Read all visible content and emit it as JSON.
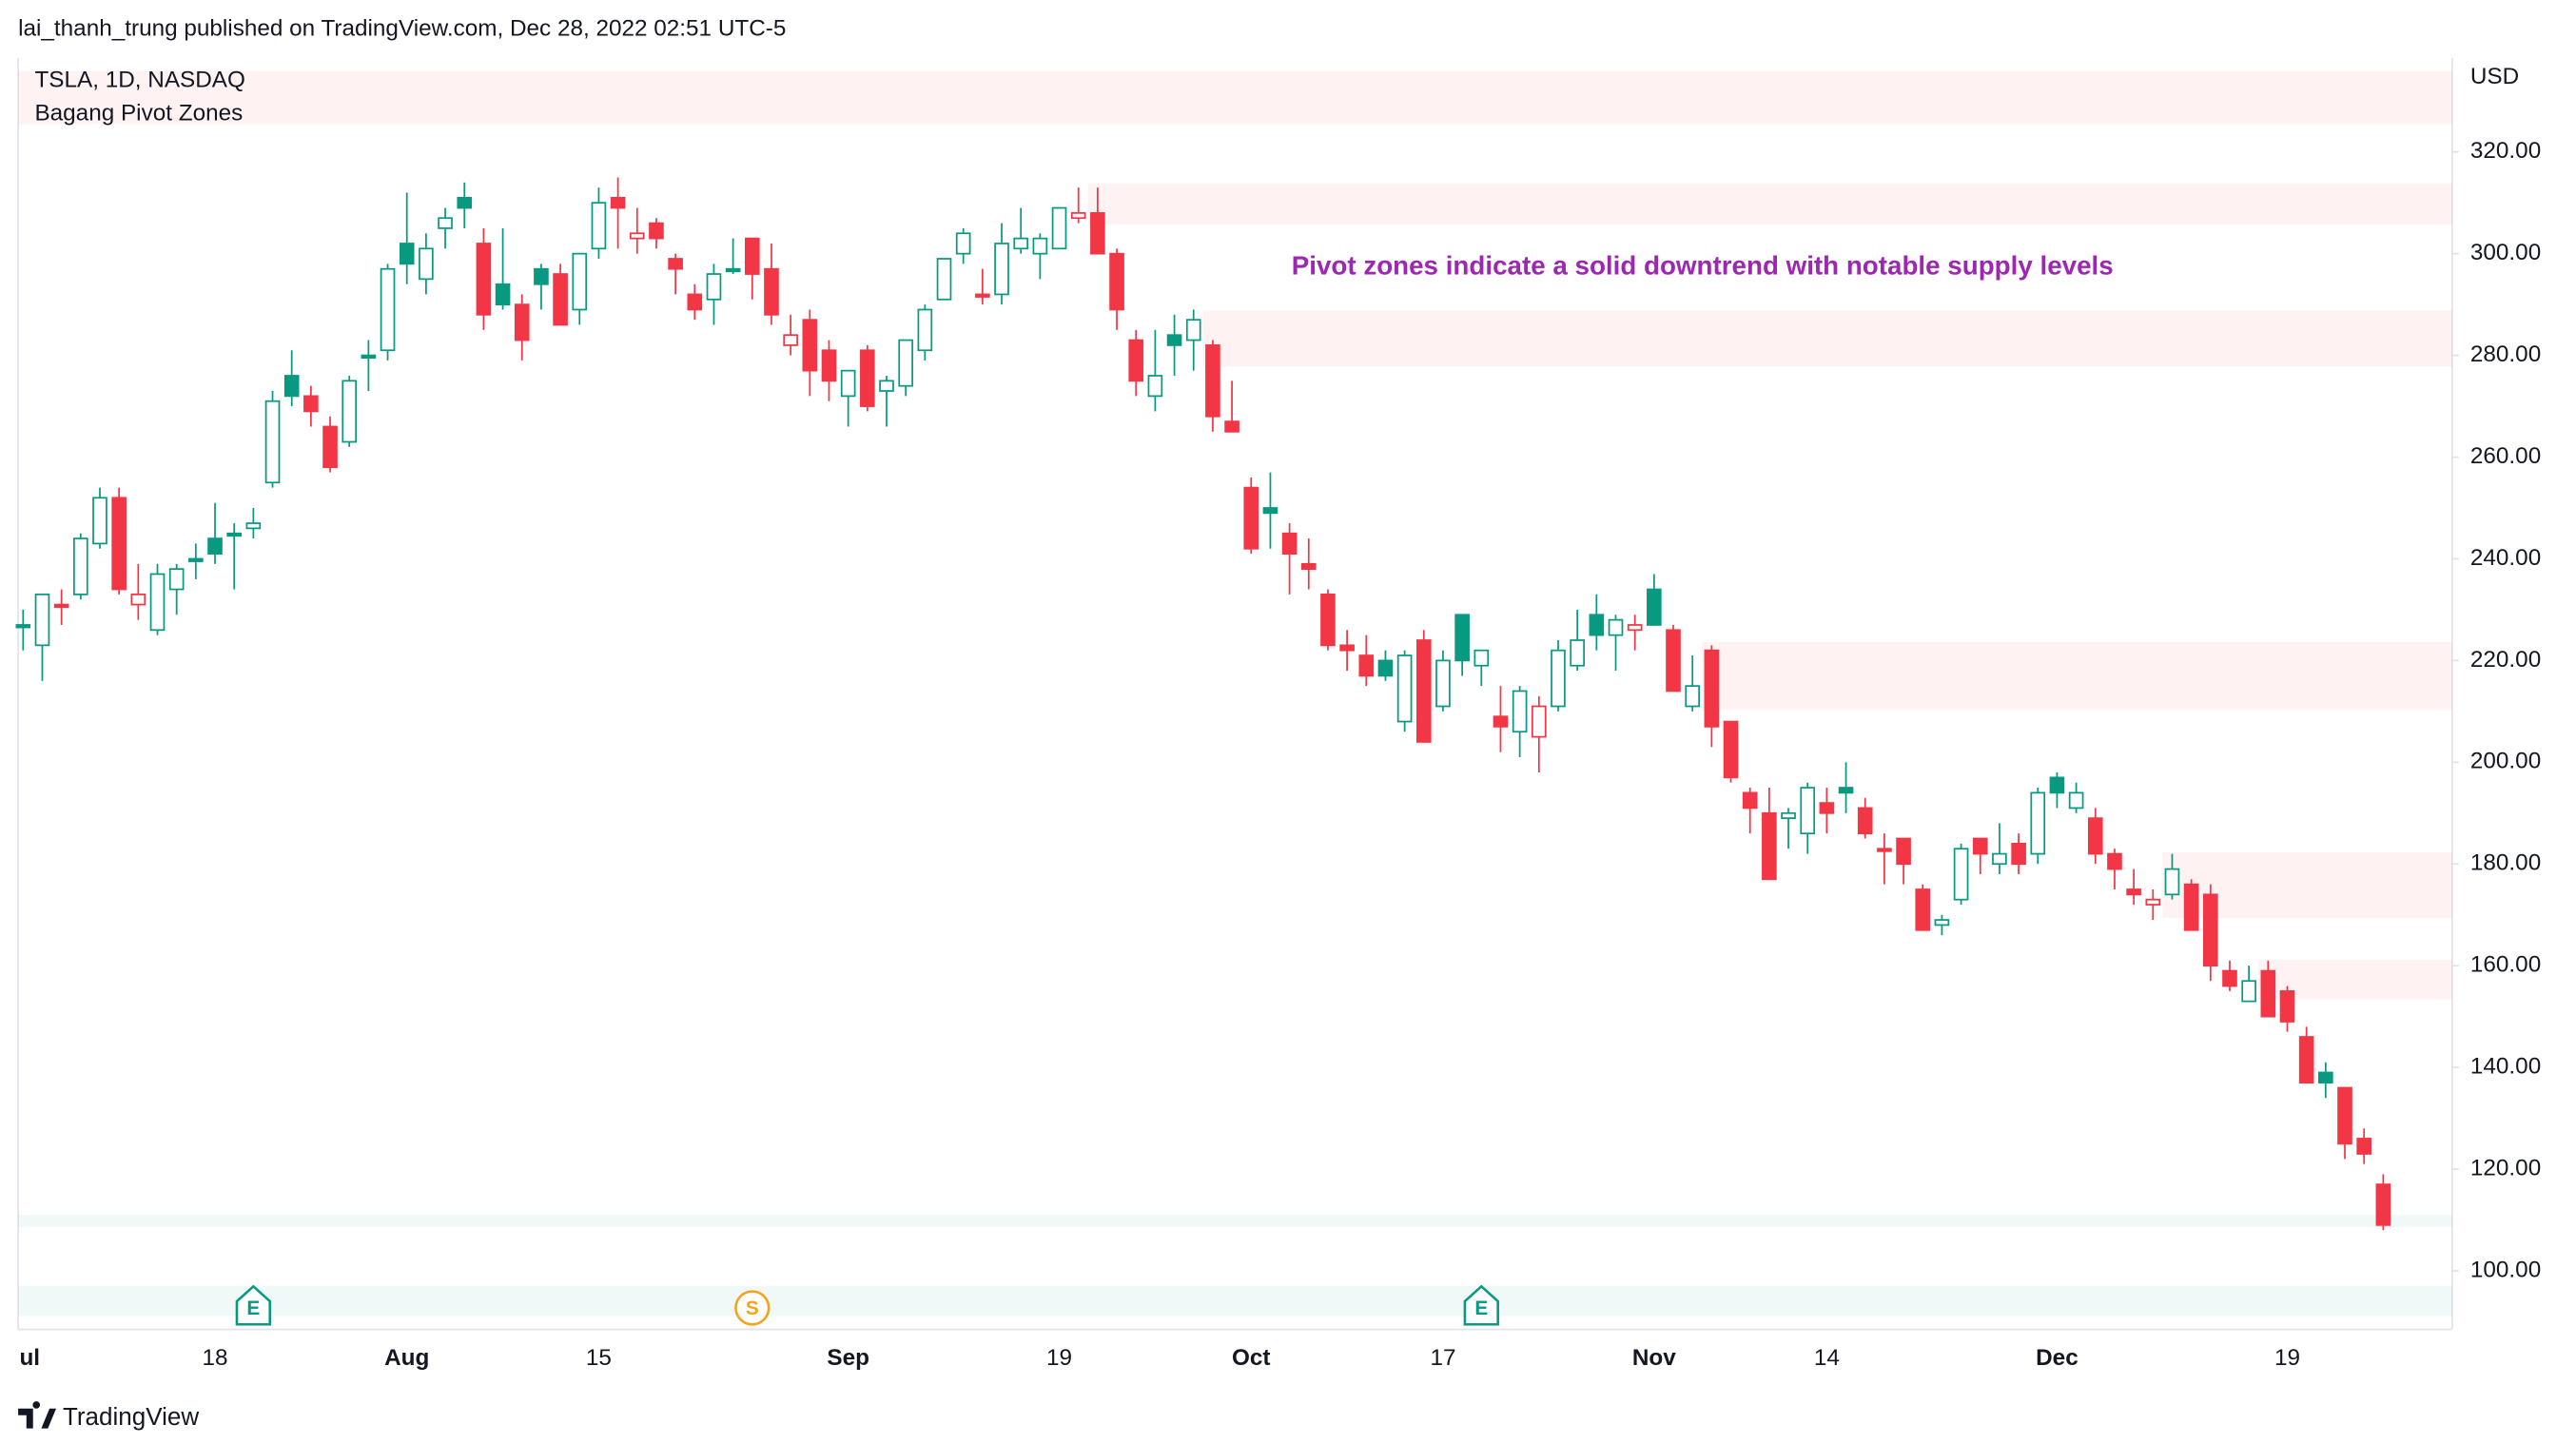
{
  "header": {
    "publisher": "lai_thanh_trung published on TradingView.com, Dec 28, 2022 02:51 UTC-5",
    "brand": "TradingView"
  },
  "chart_data": {
    "type": "candlestick",
    "title": "TSLA, 1D, NASDAQ",
    "subtitle": "Bagang Pivot Zones",
    "y_axis_label": "USD",
    "annotation": {
      "text": "Pivot zones indicate a solid downtrend with notable supply levels",
      "color": "#9c27b0"
    },
    "up_color": "#089981",
    "down_color": "#f23645",
    "categories": [
      "ul",
      null,
      null,
      null,
      null,
      null,
      null,
      null,
      null,
      null,
      "18",
      null,
      null,
      null,
      null,
      null,
      null,
      null,
      null,
      null,
      "Aug",
      null,
      null,
      null,
      null,
      null,
      null,
      null,
      null,
      null,
      "15",
      null,
      null,
      null,
      null,
      null,
      null,
      null,
      null,
      null,
      null,
      null,
      null,
      "Sep",
      null,
      null,
      null,
      null,
      null,
      null,
      null,
      null,
      null,
      null,
      "19",
      null,
      null,
      null,
      null,
      null,
      null,
      null,
      null,
      null,
      "Oct",
      null,
      null,
      null,
      null,
      null,
      null,
      null,
      null,
      null,
      "17",
      null,
      null,
      null,
      null,
      null,
      null,
      null,
      null,
      null,
      null,
      "Nov",
      null,
      null,
      null,
      null,
      null,
      null,
      null,
      null,
      "14",
      null,
      null,
      null,
      null,
      null,
      null,
      null,
      null,
      null,
      null,
      null,
      "Dec",
      null,
      null,
      null,
      null,
      null,
      null,
      null,
      null,
      null,
      null,
      null,
      "19",
      null,
      null,
      null,
      null,
      null
    ],
    "ohlc": [
      [
        227,
        230,
        222,
        227
      ],
      [
        223,
        233,
        216,
        233
      ],
      [
        231,
        234,
        227,
        231
      ],
      [
        233,
        245,
        232,
        244
      ],
      [
        243,
        254,
        242,
        252
      ],
      [
        252,
        254,
        233,
        234
      ],
      [
        231,
        239,
        228,
        233
      ],
      [
        226,
        239,
        225,
        237
      ],
      [
        234,
        239,
        229,
        238
      ],
      [
        240,
        243,
        236,
        240
      ],
      [
        244,
        251,
        239,
        241
      ],
      [
        245,
        247,
        234,
        245
      ],
      [
        246,
        250,
        244,
        247
      ],
      [
        255,
        273,
        254,
        271
      ],
      [
        276,
        281,
        270,
        272
      ],
      [
        272,
        274,
        266,
        269
      ],
      [
        266,
        268,
        257,
        258
      ],
      [
        263,
        276,
        262,
        275
      ],
      [
        280,
        283,
        273,
        280
      ],
      [
        281,
        298,
        279,
        297
      ],
      [
        302,
        312,
        294,
        298
      ],
      [
        295,
        304,
        292,
        301
      ],
      [
        305,
        309,
        301,
        307
      ],
      [
        311,
        314,
        305,
        309
      ],
      [
        302,
        305,
        285,
        288
      ],
      [
        294,
        305,
        289,
        290
      ],
      [
        290,
        292,
        279,
        283
      ],
      [
        297,
        298,
        289,
        294
      ],
      [
        296,
        298,
        286,
        286
      ],
      [
        289,
        300,
        286,
        300
      ],
      [
        301,
        313,
        299,
        310
      ],
      [
        311,
        315,
        301,
        309
      ],
      [
        303,
        309,
        300,
        304
      ],
      [
        306,
        307,
        301,
        303
      ],
      [
        299,
        300,
        292,
        297
      ],
      [
        292,
        294,
        287,
        289
      ],
      [
        291,
        298,
        286,
        296
      ],
      [
        297,
        303,
        296,
        297
      ],
      [
        303,
        303,
        291,
        296
      ],
      [
        297,
        302,
        286,
        288
      ],
      [
        282,
        288,
        280,
        284
      ],
      [
        287,
        289,
        272,
        277
      ],
      [
        281,
        283,
        271,
        275
      ],
      [
        272,
        277,
        266,
        277
      ],
      [
        281,
        282,
        269,
        270
      ],
      [
        273,
        276,
        266,
        275
      ],
      [
        274,
        283,
        272,
        283
      ],
      [
        281,
        290,
        279,
        289
      ],
      [
        291,
        299,
        291,
        299
      ],
      [
        300,
        305,
        298,
        304
      ],
      [
        292,
        297,
        290,
        292
      ],
      [
        292,
        306,
        290,
        302
      ],
      [
        301,
        309,
        300,
        303
      ],
      [
        300,
        304,
        295,
        303
      ],
      [
        301,
        309,
        301,
        309
      ],
      [
        307,
        313,
        306,
        308
      ],
      [
        308,
        313,
        300,
        300
      ],
      [
        300,
        301,
        285,
        289
      ],
      [
        283,
        285,
        272,
        275
      ],
      [
        272,
        285,
        269,
        276
      ],
      [
        284,
        288,
        276,
        282
      ],
      [
        283,
        289,
        277,
        287
      ],
      [
        282,
        283,
        265,
        268
      ],
      [
        267,
        275,
        265,
        265
      ],
      [
        254,
        256,
        241,
        242
      ],
      [
        250,
        257,
        242,
        249
      ],
      [
        245,
        247,
        233,
        241
      ],
      [
        239,
        244,
        234,
        238
      ],
      [
        233,
        234,
        222,
        223
      ],
      [
        223,
        226,
        218,
        222
      ],
      [
        221,
        225,
        215,
        217
      ],
      [
        220,
        222,
        216,
        217
      ],
      [
        208,
        222,
        206,
        221
      ],
      [
        224,
        226,
        204,
        204
      ],
      [
        211,
        222,
        210,
        220
      ],
      [
        229,
        229,
        217,
        220
      ],
      [
        219,
        222,
        215,
        222
      ],
      [
        209,
        215,
        202,
        207
      ],
      [
        206,
        215,
        201,
        214
      ],
      [
        205,
        213,
        198,
        211
      ],
      [
        211,
        224,
        210,
        222
      ],
      [
        219,
        230,
        218,
        224
      ],
      [
        229,
        233,
        222,
        225
      ],
      [
        225,
        229,
        218,
        228
      ],
      [
        226,
        229,
        222,
        227
      ],
      [
        234,
        237,
        227,
        227
      ],
      [
        226,
        227,
        214,
        214
      ],
      [
        211,
        221,
        210,
        215
      ],
      [
        222,
        223,
        203,
        207
      ],
      [
        208,
        208,
        196,
        197
      ],
      [
        194,
        195,
        186,
        191
      ],
      [
        190,
        195,
        177,
        177
      ],
      [
        189,
        191,
        183,
        190
      ],
      [
        186,
        196,
        182,
        195
      ],
      [
        192,
        195,
        186,
        190
      ],
      [
        195,
        200,
        190,
        194
      ],
      [
        191,
        193,
        185,
        186
      ],
      [
        183,
        186,
        176,
        183
      ],
      [
        185,
        185,
        176,
        180
      ],
      [
        175,
        176,
        167,
        167
      ],
      [
        168,
        170,
        166,
        169
      ],
      [
        173,
        184,
        172,
        183
      ],
      [
        185,
        185,
        178,
        182
      ],
      [
        180,
        188,
        178,
        182
      ],
      [
        184,
        186,
        178,
        180
      ],
      [
        182,
        195,
        180,
        194
      ],
      [
        197,
        198,
        191,
        194
      ],
      [
        191,
        196,
        190,
        194
      ],
      [
        189,
        191,
        180,
        182
      ],
      [
        182,
        183,
        175,
        179
      ],
      [
        175,
        179,
        172,
        174
      ],
      [
        172,
        175,
        169,
        173
      ],
      [
        174,
        182,
        173,
        179
      ],
      [
        176,
        177,
        167,
        167
      ],
      [
        174,
        176,
        157,
        160
      ],
      [
        159,
        161,
        155,
        156
      ],
      [
        153,
        160,
        153,
        157
      ],
      [
        159,
        161,
        150,
        150
      ],
      [
        155,
        156,
        147,
        149
      ],
      [
        146,
        148,
        137,
        137
      ],
      [
        139,
        141,
        134,
        137
      ],
      [
        136,
        136,
        122,
        125
      ],
      [
        126,
        128,
        121,
        123
      ],
      [
        117,
        119,
        108,
        109
      ]
    ],
    "zones": [
      {
        "low": 325.5,
        "high": 335.9,
        "start": 0,
        "color": "#f23645"
      },
      {
        "low": 305.7,
        "high": 313.8,
        "start": 56,
        "color": "#f23645"
      },
      {
        "low": 277.8,
        "high": 288.8,
        "start": 62,
        "color": "#f23645"
      },
      {
        "low": 210.3,
        "high": 223.6,
        "start": 88,
        "color": "#f23645"
      },
      {
        "low": 169.4,
        "high": 182.3,
        "start": 112,
        "color": "#f23645"
      },
      {
        "low": 153.4,
        "high": 161.1,
        "start": 117,
        "color": "#f23645"
      },
      {
        "low": 108.6,
        "high": 111,
        "start": 0,
        "color": "#089981"
      },
      {
        "low": 91.1,
        "high": 97.1,
        "start": 0,
        "color": "#089981"
      }
    ],
    "events": [
      {
        "label": "E",
        "index": 12,
        "color": "#089981"
      },
      {
        "label": "S",
        "index": 38,
        "color": "#f7a21b"
      },
      {
        "label": "E",
        "index": 76,
        "color": "#089981"
      }
    ],
    "ylim": [
      88.5,
      338.5
    ],
    "yticks": [
      {
        "value": 100,
        "label": "100.00"
      },
      {
        "value": 120,
        "label": "120.00"
      },
      {
        "value": 140,
        "label": "140.00"
      },
      {
        "value": 160,
        "label": "160.00"
      },
      {
        "value": 180,
        "label": "180.00"
      },
      {
        "value": 200,
        "label": "200.00"
      },
      {
        "value": 220,
        "label": "220.00"
      },
      {
        "value": 240,
        "label": "240.00"
      },
      {
        "value": 260,
        "label": "260.00"
      },
      {
        "value": 280,
        "label": "280.00"
      },
      {
        "value": 300,
        "label": "300.00"
      },
      {
        "value": 320,
        "label": "320.00"
      }
    ],
    "grid": false
  }
}
